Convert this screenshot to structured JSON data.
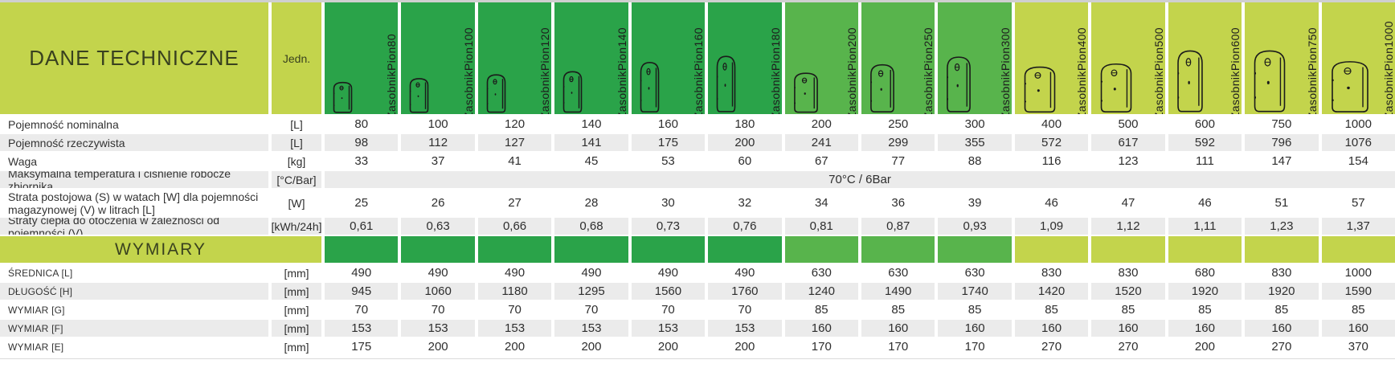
{
  "header": {
    "title": "DANE TECHNICZNE",
    "unit_col": "Jedn.",
    "columns": [
      {
        "name": "ZasobnikPion80",
        "color": "dark"
      },
      {
        "name": "ZasobnikPion100",
        "color": "dark"
      },
      {
        "name": "ZasobnikPion120",
        "color": "dark"
      },
      {
        "name": "ZasobnikPion140",
        "color": "dark"
      },
      {
        "name": "ZasobnikPion160",
        "color": "dark"
      },
      {
        "name": "ZasobnikPion180",
        "color": "dark"
      },
      {
        "name": "ZasobnikPion200",
        "color": "mid"
      },
      {
        "name": "ZasobnikPion250",
        "color": "mid"
      },
      {
        "name": "ZasobnikPion300",
        "color": "mid"
      },
      {
        "name": "ZasobnikPion400",
        "color": "lime"
      },
      {
        "name": "ZasobnikPion500",
        "color": "lime"
      },
      {
        "name": "ZasobnikPion600",
        "color": "lime"
      },
      {
        "name": "ZasobnikPion750",
        "color": "lime"
      },
      {
        "name": "ZasobnikPion1000",
        "color": "lime"
      }
    ]
  },
  "colors": {
    "lime": "#c3d44c",
    "dark_green": "#2aa349",
    "mid_green": "#58b44c",
    "row_gray": "#ebebeb"
  },
  "table": {
    "rows": [
      {
        "kind": "data",
        "shade": "white",
        "label": "Pojemność nominalna",
        "unit": "[L]",
        "values": [
          "80",
          "100",
          "120",
          "140",
          "160",
          "180",
          "200",
          "250",
          "300",
          "400",
          "500",
          "600",
          "750",
          "1000"
        ]
      },
      {
        "kind": "data",
        "shade": "gray",
        "label": "Pojemność rzeczywista",
        "unit": "[L]",
        "values": [
          "98",
          "112",
          "127",
          "141",
          "175",
          "200",
          "241",
          "299",
          "355",
          "572",
          "617",
          "592",
          "796",
          "1076"
        ]
      },
      {
        "kind": "data",
        "shade": "white",
        "label": "Waga",
        "unit": "[kg]",
        "values": [
          "33",
          "37",
          "41",
          "45",
          "53",
          "60",
          "67",
          "77",
          "88",
          "116",
          "123",
          "111",
          "147",
          "154"
        ]
      },
      {
        "kind": "span",
        "shade": "gray",
        "label": "Maksymalna temperatura i ciśnienie robocze zbiornika",
        "unit": "[°C/Bar]",
        "value": "70°C / 6Bar"
      },
      {
        "kind": "data",
        "shade": "white",
        "tall": true,
        "label": "Strata postojowa (S) w watach [W] dla pojemności magazynowej (V) w litrach [L]",
        "unit": "[W]",
        "values": [
          "25",
          "26",
          "27",
          "28",
          "30",
          "32",
          "34",
          "36",
          "39",
          "46",
          "47",
          "46",
          "51",
          "57"
        ]
      },
      {
        "kind": "data",
        "shade": "gray",
        "label": "Straty ciepła do otoczenia w zależności od pojemności (V)",
        "unit": "[kWh/24h]",
        "values": [
          "0,61",
          "0,63",
          "0,66",
          "0,68",
          "0,73",
          "0,76",
          "0,81",
          "0,87",
          "0,93",
          "1,09",
          "1,12",
          "1,11",
          "1,23",
          "1,37"
        ]
      },
      {
        "kind": "section",
        "label": "WYMIARY"
      },
      {
        "kind": "data",
        "shade": "white",
        "small": true,
        "label": "ŚREDNICA [L]",
        "unit": "[mm]",
        "values": [
          "490",
          "490",
          "490",
          "490",
          "490",
          "490",
          "630",
          "630",
          "630",
          "830",
          "830",
          "680",
          "830",
          "1000"
        ]
      },
      {
        "kind": "data",
        "shade": "gray",
        "small": true,
        "label": "DŁUGOŚĆ [H]",
        "unit": "[mm]",
        "values": [
          "945",
          "1060",
          "1180",
          "1295",
          "1560",
          "1760",
          "1240",
          "1490",
          "1740",
          "1420",
          "1520",
          "1920",
          "1920",
          "1590"
        ]
      },
      {
        "kind": "data",
        "shade": "white",
        "small": true,
        "label": "WYMIAR [G]",
        "unit": "[mm]",
        "values": [
          "70",
          "70",
          "70",
          "70",
          "70",
          "70",
          "85",
          "85",
          "85",
          "85",
          "85",
          "85",
          "85",
          "85"
        ]
      },
      {
        "kind": "data",
        "shade": "gray",
        "small": true,
        "label": "WYMIAR [F]",
        "unit": "[mm]",
        "values": [
          "153",
          "153",
          "153",
          "153",
          "153",
          "153",
          "160",
          "160",
          "160",
          "160",
          "160",
          "160",
          "160",
          "160"
        ]
      },
      {
        "kind": "data",
        "shade": "white",
        "small": true,
        "label": "WYMIAR [E]",
        "unit": "[mm]",
        "values": [
          "175",
          "200",
          "200",
          "200",
          "200",
          "200",
          "170",
          "170",
          "170",
          "270",
          "270",
          "200",
          "270",
          "370"
        ]
      }
    ]
  },
  "chart_data": {
    "type": "table",
    "title": "DANE TECHNICZNE",
    "section_header": "WYMIARY",
    "unit_column_header": "Jedn.",
    "columns": [
      "ZasobnikPion80",
      "ZasobnikPion100",
      "ZasobnikPion120",
      "ZasobnikPion140",
      "ZasobnikPion160",
      "ZasobnikPion180",
      "ZasobnikPion200",
      "ZasobnikPion250",
      "ZasobnikPion300",
      "ZasobnikPion400",
      "ZasobnikPion500",
      "ZasobnikPion600",
      "ZasobnikPion750",
      "ZasobnikPion1000"
    ],
    "rows": [
      {
        "label": "Pojemność nominalna",
        "unit": "[L]",
        "values": [
          80,
          100,
          120,
          140,
          160,
          180,
          200,
          250,
          300,
          400,
          500,
          600,
          750,
          1000
        ]
      },
      {
        "label": "Pojemność rzeczywista",
        "unit": "[L]",
        "values": [
          98,
          112,
          127,
          141,
          175,
          200,
          241,
          299,
          355,
          572,
          617,
          592,
          796,
          1076
        ]
      },
      {
        "label": "Waga",
        "unit": "[kg]",
        "values": [
          33,
          37,
          41,
          45,
          53,
          60,
          67,
          77,
          88,
          116,
          123,
          111,
          147,
          154
        ]
      },
      {
        "label": "Maksymalna temperatura i ciśnienie robocze zbiornika",
        "unit": "[°C/Bar]",
        "values": "70°C / 6Bar"
      },
      {
        "label": "Strata postojowa (S) w watach [W] dla pojemności magazynowej (V) w litrach [L]",
        "unit": "[W]",
        "values": [
          25,
          26,
          27,
          28,
          30,
          32,
          34,
          36,
          39,
          46,
          47,
          46,
          51,
          57
        ]
      },
      {
        "label": "Straty ciepła do otoczenia w zależności od pojemności (V)",
        "unit": "[kWh/24h]",
        "values": [
          0.61,
          0.63,
          0.66,
          0.68,
          0.73,
          0.76,
          0.81,
          0.87,
          0.93,
          1.09,
          1.12,
          1.11,
          1.23,
          1.37
        ]
      },
      {
        "label": "ŚREDNICA [L]",
        "unit": "[mm]",
        "values": [
          490,
          490,
          490,
          490,
          490,
          490,
          630,
          630,
          630,
          830,
          830,
          680,
          830,
          1000
        ]
      },
      {
        "label": "DŁUGOŚĆ [H]",
        "unit": "[mm]",
        "values": [
          945,
          1060,
          1180,
          1295,
          1560,
          1760,
          1240,
          1490,
          1740,
          1420,
          1520,
          1920,
          1920,
          1590
        ]
      },
      {
        "label": "WYMIAR [G]",
        "unit": "[mm]",
        "values": [
          70,
          70,
          70,
          70,
          70,
          70,
          85,
          85,
          85,
          85,
          85,
          85,
          85,
          85
        ]
      },
      {
        "label": "WYMIAR [F]",
        "unit": "[mm]",
        "values": [
          153,
          153,
          153,
          153,
          153,
          153,
          160,
          160,
          160,
          160,
          160,
          160,
          160,
          160
        ]
      },
      {
        "label": "WYMIAR [E]",
        "unit": "[mm]",
        "values": [
          175,
          200,
          200,
          200,
          200,
          200,
          170,
          170,
          170,
          270,
          270,
          200,
          270,
          370
        ]
      }
    ]
  }
}
